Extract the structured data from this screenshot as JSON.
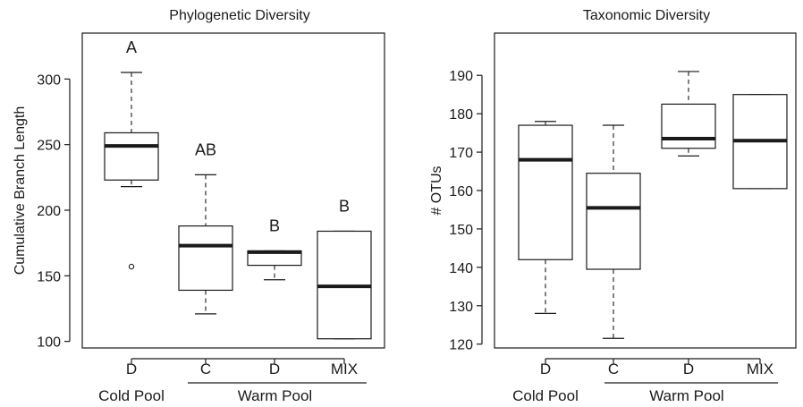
{
  "chart_data": [
    {
      "type": "box",
      "title": "Phylogenetic Diversity",
      "xlabel": "",
      "ylabel": "Cumulative Branch Length",
      "ylim": [
        95,
        335
      ],
      "yticks": [
        100,
        150,
        200,
        250,
        300
      ],
      "categories": [
        "D",
        "C",
        "D",
        "MIX"
      ],
      "groups": [
        {
          "label": "Cold Pool",
          "members": [
            0
          ]
        },
        {
          "label": "Warm Pool",
          "members": [
            1,
            2,
            3
          ]
        }
      ],
      "boxes": [
        {
          "category": "D",
          "min": 218,
          "q1": 223,
          "median": 249,
          "q3": 259,
          "max": 305,
          "outliers": [
            157
          ],
          "letter": "A"
        },
        {
          "category": "C",
          "min": 121,
          "q1": 139,
          "median": 173,
          "q3": 188,
          "max": 227,
          "outliers": [],
          "letter": "AB"
        },
        {
          "category": "D",
          "min": 147,
          "q1": 158,
          "median": 168,
          "q3": 169,
          "max": 169,
          "outliers": [],
          "letter": "B"
        },
        {
          "category": "MIX",
          "min": 102,
          "q1": 102,
          "median": 142,
          "q3": 184,
          "max": 184,
          "outliers": [],
          "letter": "B"
        }
      ]
    },
    {
      "type": "box",
      "title": "Taxonomic Diversity",
      "xlabel": "",
      "ylabel": "# OTUs",
      "ylim": [
        119,
        201
      ],
      "yticks": [
        120,
        130,
        140,
        150,
        160,
        170,
        180,
        190
      ],
      "categories": [
        "D",
        "C",
        "D",
        "MIX"
      ],
      "groups": [
        {
          "label": "Cold Pool",
          "members": [
            0
          ]
        },
        {
          "label": "Warm Pool",
          "members": [
            1,
            2,
            3
          ]
        }
      ],
      "boxes": [
        {
          "category": "D",
          "min": 128,
          "q1": 142,
          "median": 168,
          "q3": 177,
          "max": 178,
          "outliers": []
        },
        {
          "category": "C",
          "min": 121.5,
          "q1": 139.5,
          "median": 155.5,
          "q3": 164.5,
          "max": 177,
          "outliers": []
        },
        {
          "category": "D",
          "min": 169,
          "q1": 171,
          "median": 173.5,
          "q3": 182.5,
          "max": 191,
          "outliers": []
        },
        {
          "category": "MIX",
          "min": 160.5,
          "q1": 160.5,
          "median": 173,
          "q3": 185,
          "max": 185,
          "outliers": []
        }
      ]
    }
  ]
}
